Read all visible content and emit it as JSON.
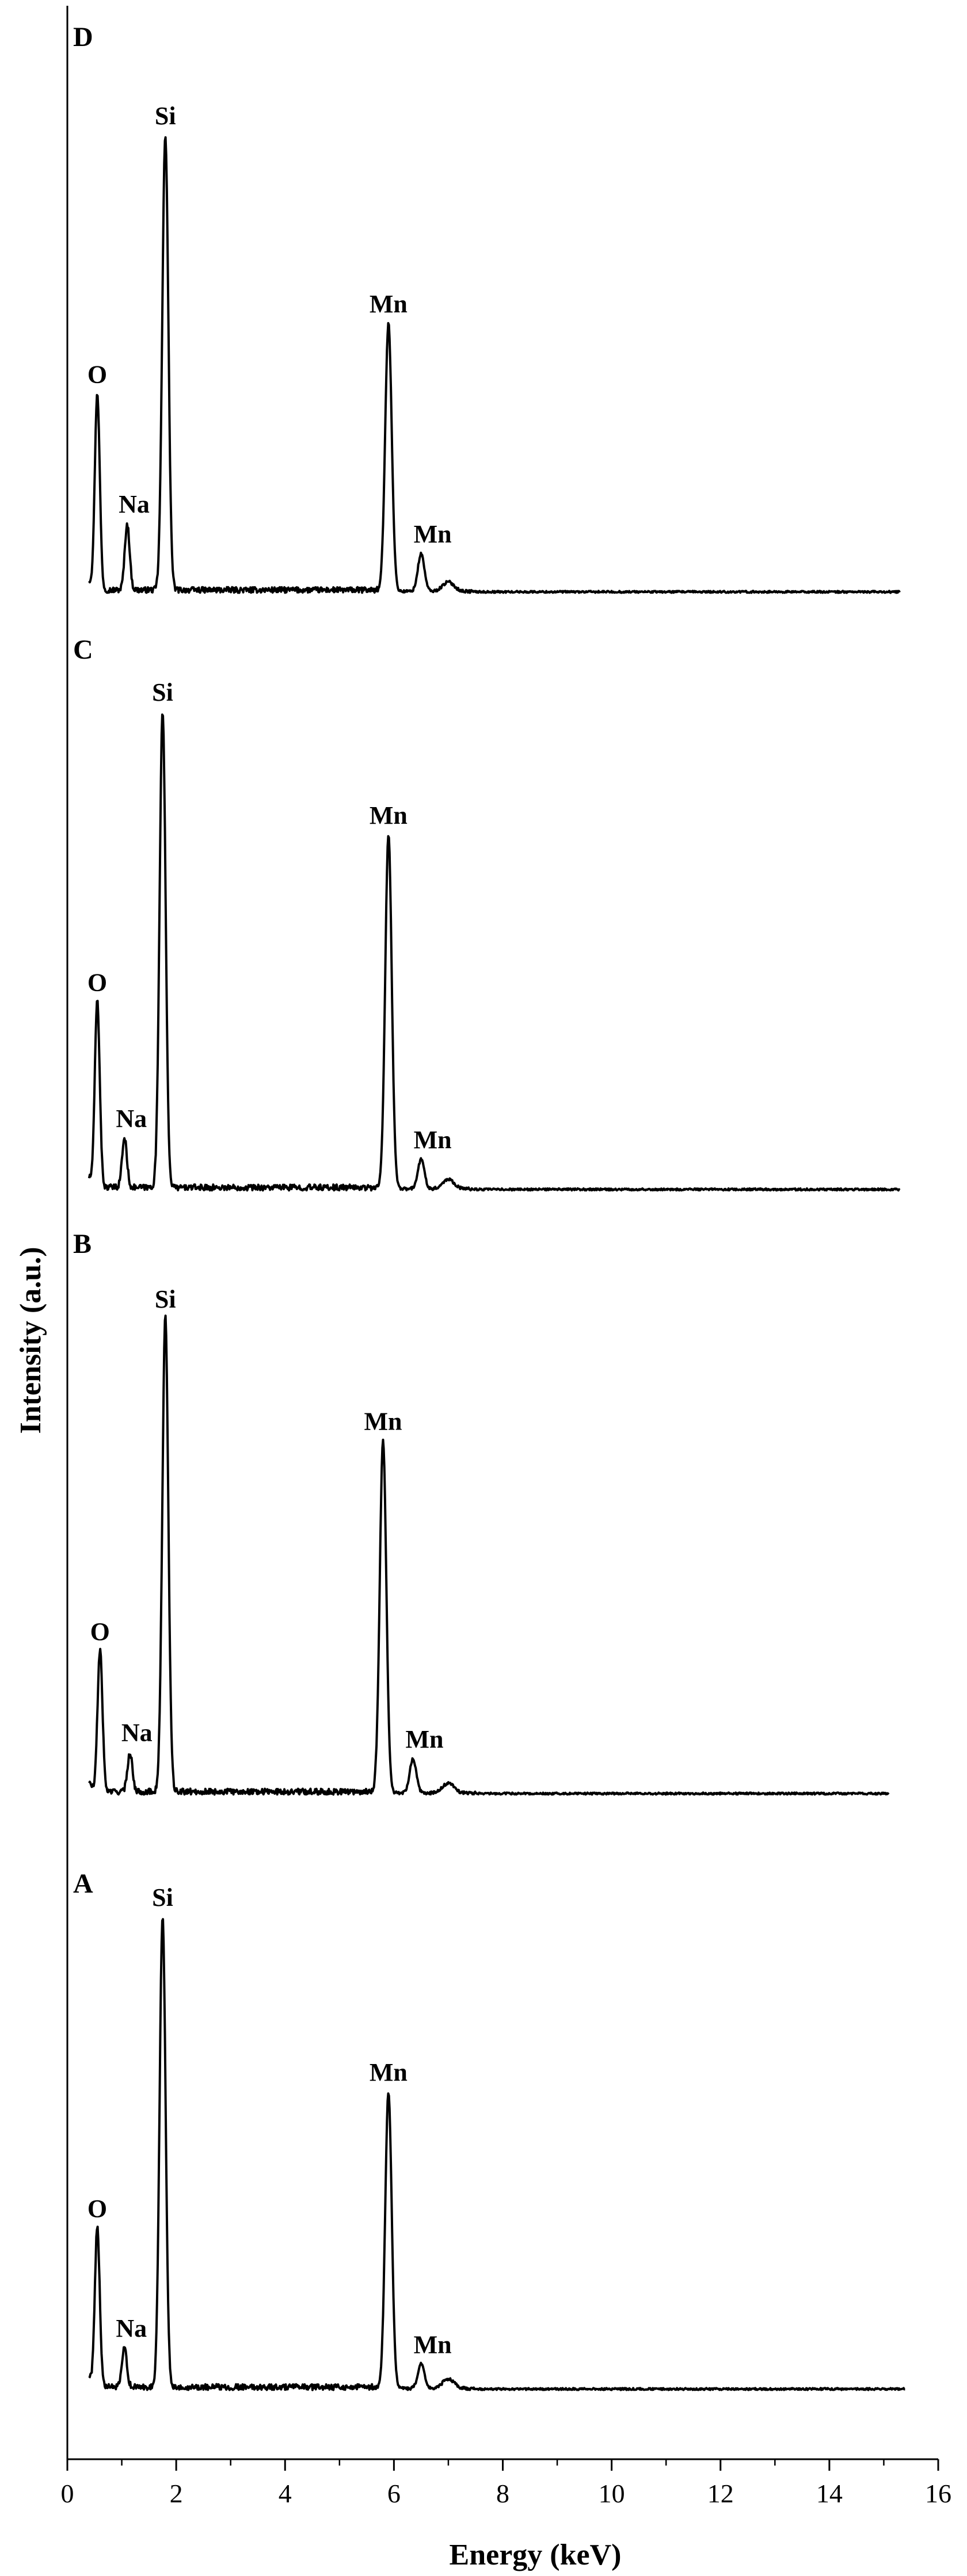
{
  "chart_data": {
    "type": "line",
    "xlabel": "Energy (keV)",
    "ylabel": "Intensity (a.u.)",
    "xlim": [
      0,
      16
    ],
    "x_ticks": [
      0,
      2,
      4,
      6,
      8,
      10,
      12,
      14,
      16
    ],
    "x_tick_labels": [
      "0",
      "2",
      "4",
      "6",
      "8",
      "10",
      "12",
      "14",
      "16"
    ],
    "y_ticks_shown": false,
    "grid": false,
    "legend": "none",
    "line_color": "#000000",
    "panels": [
      {
        "label": "D",
        "x_range": [
          0.4,
          15.3
        ],
        "baseline": 0.03,
        "peaks": [
          {
            "element": "O",
            "energy": 0.55,
            "intensity": 0.45
          },
          {
            "element": "Na",
            "energy": 1.1,
            "intensity": 0.17
          },
          {
            "element": "Si",
            "energy": 1.8,
            "intensity": 1.0
          },
          {
            "element": "Mn",
            "energy": 5.9,
            "intensity": 0.6
          },
          {
            "element": "Mn",
            "energy": 6.5,
            "intensity": 0.11
          }
        ]
      },
      {
        "label": "C",
        "x_range": [
          0.4,
          15.3
        ],
        "baseline": 0.03,
        "peaks": [
          {
            "element": "O",
            "energy": 0.55,
            "intensity": 0.41
          },
          {
            "element": "Na",
            "energy": 1.05,
            "intensity": 0.13
          },
          {
            "element": "Si",
            "energy": 1.75,
            "intensity": 1.0
          },
          {
            "element": "Mn",
            "energy": 5.9,
            "intensity": 0.75
          },
          {
            "element": "Mn",
            "energy": 6.5,
            "intensity": 0.09
          }
        ]
      },
      {
        "label": "B",
        "x_range": [
          0.4,
          15.1
        ],
        "baseline": 0.03,
        "peaks": [
          {
            "element": "O",
            "energy": 0.6,
            "intensity": 0.32
          },
          {
            "element": "Na",
            "energy": 1.15,
            "intensity": 0.11
          },
          {
            "element": "Si",
            "energy": 1.8,
            "intensity": 1.0
          },
          {
            "element": "Mn",
            "energy": 5.8,
            "intensity": 0.75
          },
          {
            "element": "Mn",
            "energy": 6.35,
            "intensity": 0.1
          }
        ]
      },
      {
        "label": "A",
        "x_range": [
          0.4,
          15.4
        ],
        "baseline": 0.03,
        "peaks": [
          {
            "element": "O",
            "energy": 0.55,
            "intensity": 0.36
          },
          {
            "element": "Na",
            "energy": 1.05,
            "intensity": 0.11
          },
          {
            "element": "Si",
            "energy": 1.75,
            "intensity": 1.0
          },
          {
            "element": "Mn",
            "energy": 5.9,
            "intensity": 0.64
          },
          {
            "element": "Mn",
            "energy": 6.5,
            "intensity": 0.08
          }
        ]
      }
    ]
  }
}
